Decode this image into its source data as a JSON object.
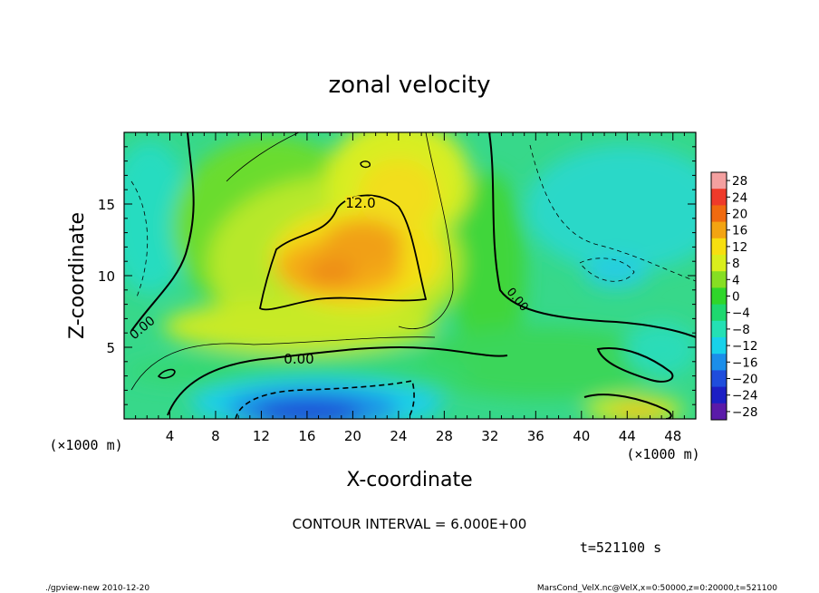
{
  "chart_data": {
    "type": "heatmap",
    "title": "zonal velocity",
    "xlabel": "X-coordinate",
    "ylabel": "Z-coordinate",
    "x_unit_left": "(×1000 m)",
    "x_unit_right": "(×1000 m)",
    "xlim": [
      0,
      50
    ],
    "ylim": [
      0,
      20
    ],
    "x_ticks": [
      4,
      8,
      12,
      16,
      20,
      24,
      28,
      32,
      36,
      40,
      44,
      48
    ],
    "y_ticks": [
      5,
      10,
      15
    ],
    "colorbar": {
      "levels": [
        28,
        24,
        20,
        16,
        12,
        8,
        4,
        0,
        -4,
        -8,
        -12,
        -16,
        -20,
        -24,
        -28
      ],
      "colors": [
        "#f4a0a0",
        "#ee3a2a",
        "#f06a10",
        "#f3a412",
        "#f7df10",
        "#d9ee1c",
        "#86de22",
        "#2fd62a",
        "#1ed86f",
        "#24e0b4",
        "#18d2ea",
        "#1b8eea",
        "#1f4ddc",
        "#1c1fc4",
        "#5a1aa8"
      ]
    },
    "contour_labels": [
      "12.0",
      "0.00",
      "0.00",
      "0.00"
    ],
    "contour_interval_text": "CONTOUR INTERVAL = 6.000E+00",
    "time_text": "t=521100 s"
  },
  "footer": {
    "left": "./gpview-new  2010-12-20",
    "right": "MarsCond_VelX.nc@VelX,x=0:50000,z=0:20000,t=521100"
  }
}
